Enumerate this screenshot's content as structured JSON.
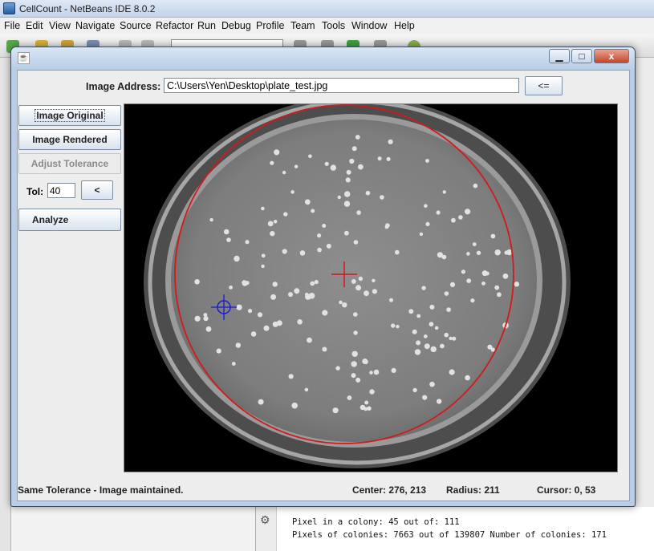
{
  "ide": {
    "title": "CellCount - NetBeans IDE 8.0.2",
    "menu": [
      "File",
      "Edit",
      "View",
      "Navigate",
      "Source",
      "Refactor",
      "Run",
      "Debug",
      "Profile",
      "Team",
      "Tools",
      "Window",
      "Help"
    ],
    "output_lines": [
      "Pixel in a colony: 45 out of: 111",
      "Pixels of colonies: 7663 out of 139807 Number of colonies: 171"
    ]
  },
  "dialog": {
    "icon": "java-icon",
    "controls": {
      "minimize": "▁",
      "maximize": "□",
      "close": "x"
    }
  },
  "address": {
    "label": "Image Address:",
    "value": "C:\\Users\\Yen\\Desktop\\plate_test.jpg",
    "load_button": "<="
  },
  "controls": {
    "image_original": "Image Original",
    "image_rendered": "Image Rendered",
    "adjust_tolerance": "Adjust Tolerance",
    "tol_label": "Tol:",
    "tol_value": "40",
    "tol_button": "<",
    "analyze": "Analyze"
  },
  "status": {
    "message": "Same Tolerance - Image maintained.",
    "center": "Center: 276, 213",
    "radius": "Radius: 211",
    "cursor": "Cursor: 0, 53"
  },
  "colors": {
    "circle": "#d21a1a",
    "center_marker": "#d01818",
    "cursor_marker": "#1a1ad0",
    "plate": "#838383"
  }
}
